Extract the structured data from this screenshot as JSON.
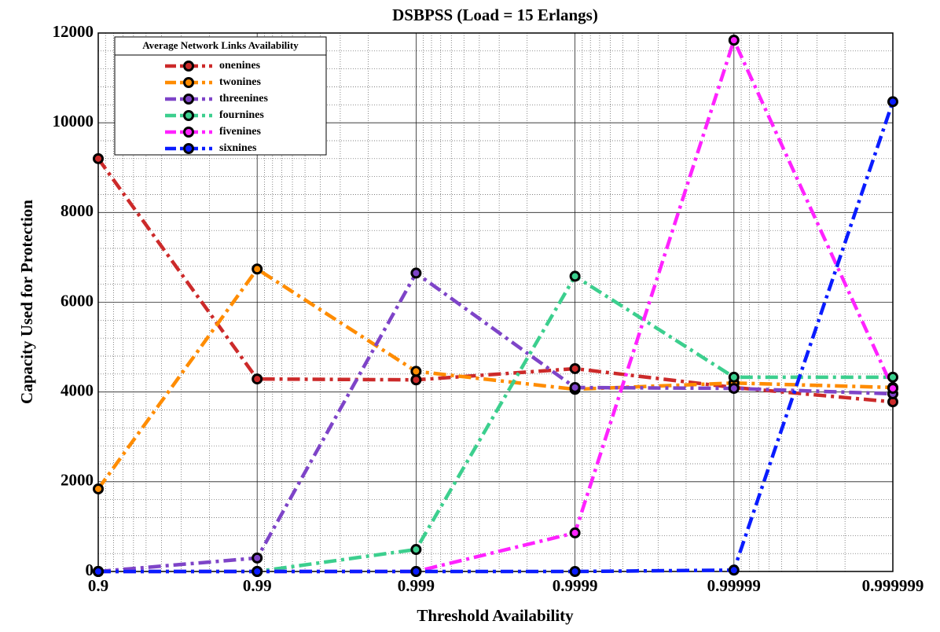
{
  "chart_data": {
    "type": "line",
    "title": "DSBPSS (Load  = 15 Erlangs)",
    "x_label": "Threshold Availability",
    "y_label": "Capacity Used for Protection",
    "categories": [
      "0.9",
      "0.99",
      "0.999",
      "0.9999",
      "0.99999",
      "0.999999"
    ],
    "series": [
      {
        "name": "onenines",
        "color": "#cc2a2a",
        "values": [
          9200,
          4290,
          4270,
          4520,
          4100,
          3780
        ]
      },
      {
        "name": "twonines",
        "color": "#ff8c00",
        "values": [
          1840,
          6740,
          4460,
          4060,
          4200,
          4100
        ]
      },
      {
        "name": "threenines",
        "color": "#7e44c8",
        "values": [
          0,
          300,
          6650,
          4100,
          4080,
          3960
        ]
      },
      {
        "name": "fournines",
        "color": "#3ccf8e",
        "values": [
          0,
          0,
          490,
          6580,
          4330,
          4330
        ]
      },
      {
        "name": "fivenines",
        "color": "#ff22ff",
        "values": [
          0,
          0,
          0,
          860,
          11840,
          4080
        ]
      },
      {
        "name": "sixnines",
        "color": "#0a1cff",
        "values": [
          0,
          0,
          0,
          0,
          30,
          10470
        ]
      }
    ],
    "legend_title": "Average Network Links Availability",
    "legend": "upper left",
    "ylim": [
      0,
      12000
    ],
    "yticks": [
      0,
      2000,
      4000,
      6000,
      8000,
      10000,
      12000
    ],
    "grid": true
  }
}
